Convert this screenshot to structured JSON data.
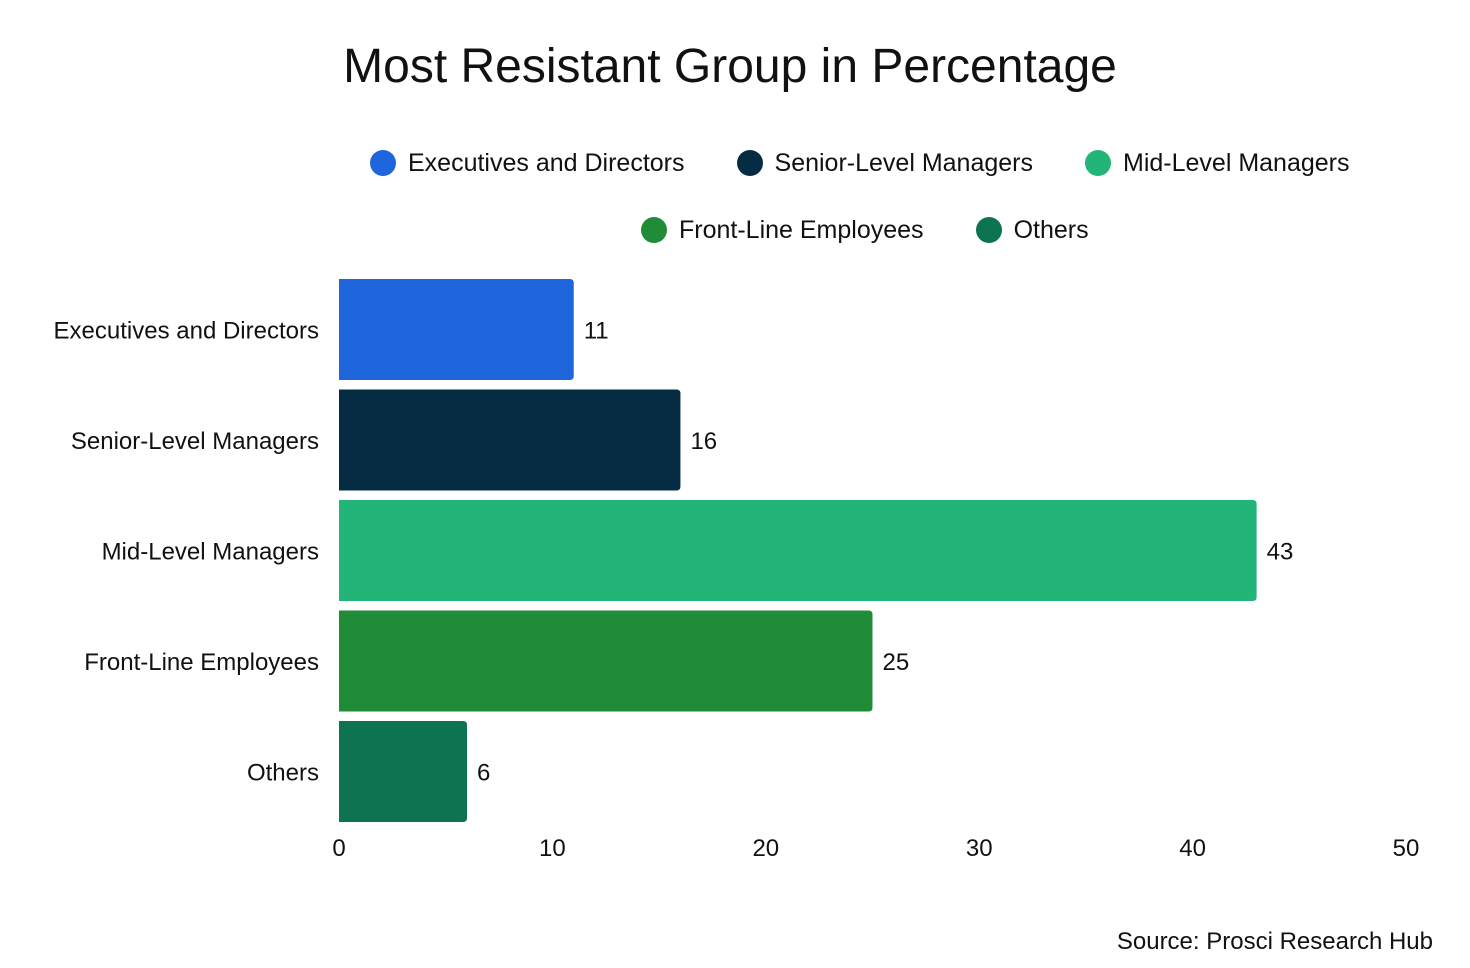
{
  "chart_data": {
    "type": "bar",
    "orientation": "horizontal",
    "title": "Most Resistant Group in Percentage",
    "categories": [
      "Executives and Directors",
      "Senior-Level Managers",
      "Mid-Level Managers",
      "Front-Line Employees",
      "Others"
    ],
    "values": [
      11,
      16,
      43,
      25,
      6
    ],
    "colors": [
      "#1f66dc",
      "#062c43",
      "#23b478",
      "#218c37",
      "#0e7350"
    ],
    "xlim": [
      0,
      50
    ],
    "x_ticks": [
      0,
      10,
      20,
      30,
      40,
      50
    ],
    "grid": false,
    "legend": {
      "placement": "top",
      "entries": [
        "Executives and Directors",
        "Senior-Level Managers",
        "Mid-Level Managers",
        "Front-Line Employees",
        "Others"
      ]
    },
    "data_labels": true,
    "source": "Source: Prosci Research Hub"
  }
}
